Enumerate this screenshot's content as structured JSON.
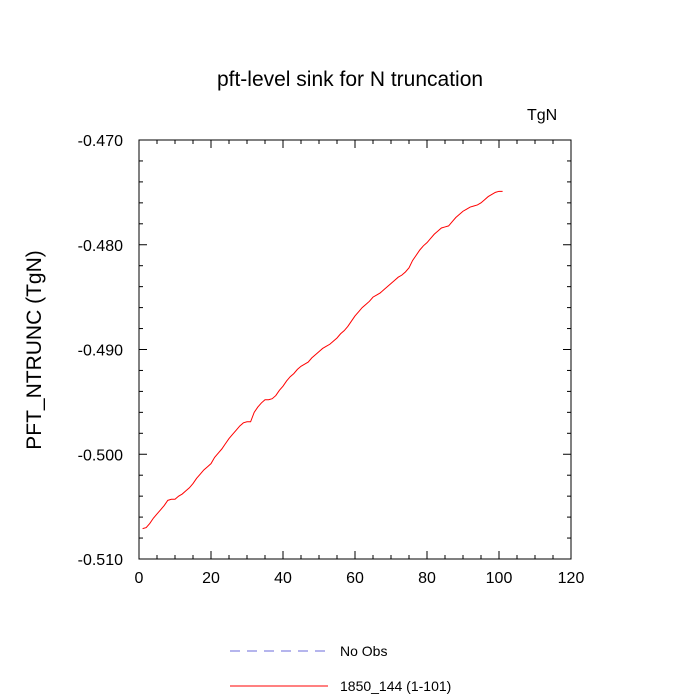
{
  "chart_data": {
    "type": "line",
    "title": "pft-level sink for N truncation",
    "units_label": "TgN",
    "ylabel": "PFT_NTRUNC  (TgN)",
    "xlabel": "",
    "xlim": [
      0,
      120
    ],
    "ylim": [
      -0.51,
      -0.47
    ],
    "x_ticks": [
      0,
      20,
      40,
      60,
      80,
      100,
      120
    ],
    "x_tick_labels": [
      "0",
      "20",
      "40",
      "60",
      "80",
      "100",
      "120"
    ],
    "y_ticks": [
      -0.51,
      -0.5,
      -0.49,
      -0.48,
      -0.47
    ],
    "y_tick_labels": [
      "-0.510",
      "-0.500",
      "-0.490",
      "-0.480",
      "-0.470"
    ],
    "grid": false,
    "legend_position": "bottom",
    "legend": [
      {
        "label": "No Obs",
        "color": "#6b6bdb",
        "style": "dashed"
      },
      {
        "label": "1850_144 (1-101)",
        "color": "#ff0000",
        "style": "solid"
      }
    ],
    "series": [
      {
        "label_ref": "1850_144 (1-101)",
        "color": "#ff0000",
        "x": [
          1,
          2,
          3,
          4,
          5,
          6,
          7,
          8,
          9,
          10,
          11,
          12,
          13,
          14,
          15,
          16,
          17,
          18,
          19,
          20,
          21,
          22,
          23,
          24,
          25,
          26,
          27,
          28,
          29,
          30,
          31,
          32,
          33,
          34,
          35,
          36,
          37,
          38,
          39,
          40,
          41,
          42,
          43,
          44,
          45,
          46,
          47,
          48,
          49,
          50,
          51,
          52,
          53,
          54,
          55,
          56,
          57,
          58,
          59,
          60,
          61,
          62,
          63,
          64,
          65,
          66,
          67,
          68,
          69,
          70,
          71,
          72,
          73,
          74,
          75,
          76,
          77,
          78,
          79,
          80,
          81,
          82,
          83,
          84,
          85,
          86,
          87,
          88,
          89,
          90,
          91,
          92,
          93,
          94,
          95,
          96,
          97,
          98,
          99,
          100,
          101
        ],
        "y": [
          -0.5071,
          -0.507,
          -0.5066,
          -0.5061,
          -0.5057,
          -0.5053,
          -0.5049,
          -0.5044,
          -0.5043,
          -0.5043,
          -0.504,
          -0.5038,
          -0.5035,
          -0.5032,
          -0.5028,
          -0.5023,
          -0.5019,
          -0.5015,
          -0.5012,
          -0.5009,
          -0.5003,
          -0.4999,
          -0.4995,
          -0.499,
          -0.4985,
          -0.4981,
          -0.4977,
          -0.4973,
          -0.497,
          -0.4969,
          -0.4969,
          -0.496,
          -0.4955,
          -0.4951,
          -0.4948,
          -0.4948,
          -0.4947,
          -0.4944,
          -0.4939,
          -0.4935,
          -0.493,
          -0.4926,
          -0.4923,
          -0.4919,
          -0.4916,
          -0.4914,
          -0.4912,
          -0.4908,
          -0.4905,
          -0.4902,
          -0.4899,
          -0.4897,
          -0.4895,
          -0.4892,
          -0.4889,
          -0.4885,
          -0.4882,
          -0.4878,
          -0.4873,
          -0.4868,
          -0.4864,
          -0.486,
          -0.4857,
          -0.4854,
          -0.485,
          -0.4848,
          -0.4846,
          -0.4843,
          -0.484,
          -0.4837,
          -0.4834,
          -0.4831,
          -0.4829,
          -0.4826,
          -0.4822,
          -0.4815,
          -0.481,
          -0.4805,
          -0.4801,
          -0.4798,
          -0.4794,
          -0.479,
          -0.4787,
          -0.4784,
          -0.4783,
          -0.4782,
          -0.4778,
          -0.4774,
          -0.4771,
          -0.4768,
          -0.4766,
          -0.4764,
          -0.4763,
          -0.4762,
          -0.476,
          -0.4757,
          -0.4754,
          -0.4752,
          -0.475,
          -0.4749,
          -0.4749
        ]
      }
    ]
  }
}
